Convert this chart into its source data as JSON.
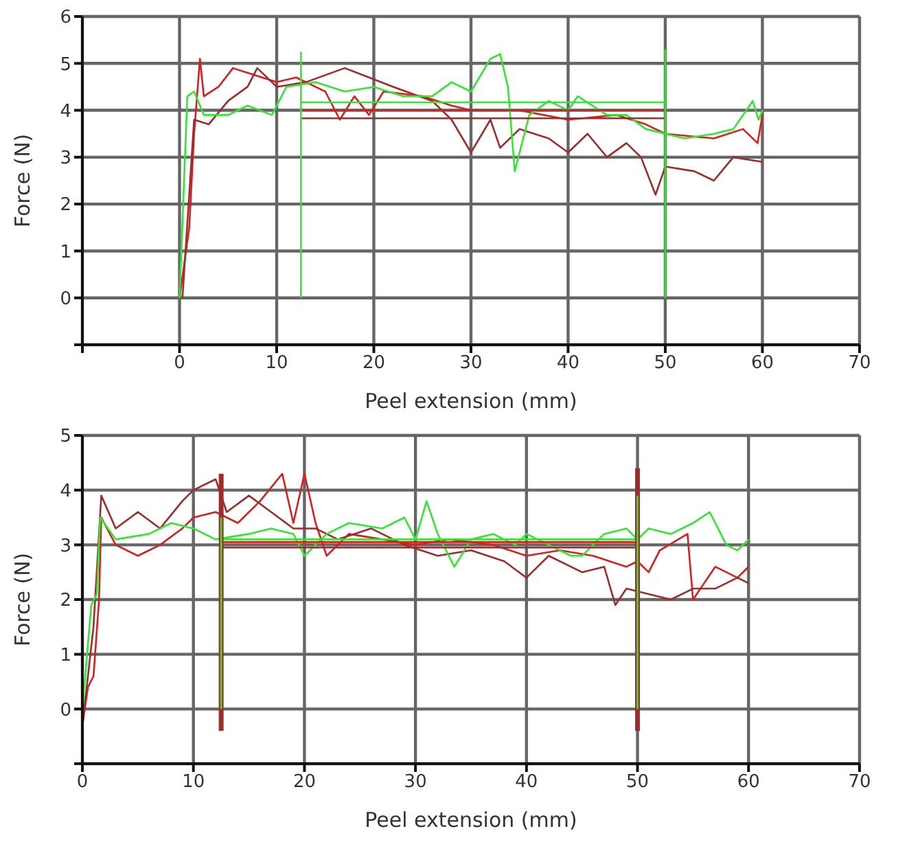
{
  "chart_data": [
    {
      "type": "line",
      "xlabel": "Peel extension (mm)",
      "ylabel": "Force (N)",
      "xlim": [
        -10,
        70
      ],
      "ylim": [
        -1,
        6
      ],
      "xticks": [
        {
          "value": -10,
          "label": null
        },
        0,
        10,
        20,
        30,
        40,
        50,
        60,
        70
      ],
      "yticks": [
        {
          "value": -1,
          "label": null
        },
        0,
        1,
        2,
        3,
        4,
        5,
        6
      ],
      "grid": true,
      "marker": "none",
      "line_style": "solid",
      "series": [
        {
          "color": "#d42020",
          "x": [
            0,
            1,
            1.5,
            2.1,
            2.5,
            4,
            5.5,
            7,
            10,
            12,
            14,
            15,
            16.5,
            18,
            19.5,
            21,
            25,
            28,
            30,
            35,
            40,
            45,
            48,
            50,
            55,
            58,
            59.5,
            60
          ],
          "values": [
            0,
            1.5,
            3.5,
            5.1,
            4.3,
            4.5,
            4.9,
            4.8,
            4.6,
            4.7,
            4.5,
            4.4,
            3.8,
            4.3,
            3.9,
            4.4,
            4.3,
            4.1,
            4.0,
            4.0,
            3.8,
            3.9,
            3.7,
            3.5,
            3.4,
            3.6,
            3.3,
            3.9
          ]
        },
        {
          "color": "#9b2d2d",
          "x": [
            0.3,
            1.5,
            3,
            5,
            7,
            8,
            10,
            13,
            17,
            19.5,
            22,
            26,
            28,
            30,
            32,
            33,
            35,
            38,
            40,
            42,
            44,
            46,
            47.5,
            49,
            50,
            53,
            55,
            57,
            60
          ],
          "values": [
            0,
            3.8,
            3.7,
            4.2,
            4.5,
            4.9,
            4.5,
            4.6,
            4.9,
            4.7,
            4.5,
            4.2,
            3.8,
            3.1,
            3.8,
            3.2,
            3.6,
            3.4,
            3.1,
            3.5,
            3.0,
            3.3,
            3.0,
            2.2,
            2.8,
            2.7,
            2.5,
            3.0,
            2.9
          ]
        },
        {
          "color": "#33e633",
          "x": [
            0,
            0.8,
            1.5,
            2.5,
            5,
            7,
            9.5,
            11,
            14,
            17,
            20,
            23,
            26,
            28,
            30,
            32,
            33,
            33.8,
            34.5,
            36,
            38,
            40,
            41,
            44,
            46,
            48,
            50,
            52,
            55,
            57,
            59,
            59.6,
            60
          ],
          "values": [
            0,
            4.3,
            4.4,
            3.9,
            3.9,
            4.1,
            3.9,
            4.5,
            4.6,
            4.4,
            4.5,
            4.3,
            4.3,
            4.6,
            4.4,
            5.1,
            5.2,
            4.5,
            2.7,
            3.9,
            4.2,
            4.0,
            4.3,
            3.9,
            3.9,
            3.6,
            3.5,
            3.4,
            3.5,
            3.6,
            4.2,
            3.8,
            4.0
          ]
        },
        {
          "color": "#33e633",
          "x": [
            12.5,
            50
          ],
          "values": [
            4.17,
            4.17
          ]
        },
        {
          "color": "#d42020",
          "x": [
            12.5,
            50
          ],
          "values": [
            4.0,
            4.0
          ]
        },
        {
          "color": "#9b2d2d",
          "x": [
            12.5,
            50
          ],
          "values": [
            3.83,
            3.83
          ]
        },
        {
          "color": "#33e633",
          "x": [
            12.5,
            12.5
          ],
          "values": [
            0,
            5.25
          ]
        },
        {
          "color": "#33e633",
          "x": [
            50,
            50
          ],
          "values": [
            0,
            5.3
          ]
        }
      ]
    },
    {
      "type": "line",
      "xlabel": "Peel extension (mm)",
      "ylabel": "Force (N)",
      "xlim": [
        0,
        70
      ],
      "ylim": [
        -1,
        5
      ],
      "xticks": [
        0,
        10,
        20,
        30,
        40,
        50,
        60,
        70
      ],
      "yticks": [
        {
          "value": -1,
          "label": null
        },
        0,
        1,
        2,
        3,
        4,
        5
      ],
      "grid": true,
      "marker": "none",
      "line_style": "solid",
      "series": [
        {
          "color": "#d42020",
          "x": [
            0,
            0.5,
            1,
            1.5,
            1.7,
            3,
            5,
            7,
            9,
            10,
            12,
            14,
            16,
            18,
            19,
            20,
            21,
            22,
            24,
            27,
            30,
            33,
            37,
            40,
            43,
            46,
            49,
            50,
            51,
            52,
            54.5,
            55,
            57,
            59,
            60
          ],
          "values": [
            -0.3,
            0.4,
            0.6,
            2.0,
            3.5,
            3.0,
            2.8,
            3.0,
            3.3,
            3.5,
            3.6,
            3.4,
            3.8,
            4.3,
            3.4,
            4.3,
            3.4,
            2.8,
            3.2,
            3.1,
            3.0,
            3.1,
            3.0,
            2.8,
            2.9,
            2.8,
            2.6,
            2.7,
            2.5,
            2.9,
            3.2,
            2.0,
            2.6,
            2.4,
            2.6
          ]
        },
        {
          "color": "#9b2d2d",
          "x": [
            0,
            1,
            1.7,
            3,
            5,
            7,
            9,
            10,
            12,
            13,
            15,
            17,
            19,
            21,
            23,
            26,
            29,
            32,
            35,
            38,
            40,
            42,
            45,
            47,
            48,
            49,
            51,
            53,
            55,
            57,
            59,
            60
          ],
          "values": [
            -0.3,
            1.5,
            3.9,
            3.3,
            3.6,
            3.3,
            3.8,
            4.0,
            4.2,
            3.6,
            3.9,
            3.6,
            3.3,
            3.3,
            3.1,
            3.3,
            3.0,
            2.8,
            2.9,
            2.7,
            2.4,
            2.8,
            2.5,
            2.6,
            1.9,
            2.2,
            2.1,
            2.0,
            2.2,
            2.2,
            2.4,
            2.3
          ]
        },
        {
          "color": "#33e633",
          "x": [
            0,
            0.8,
            1.3,
            1.6,
            3,
            6,
            8,
            10,
            12,
            15,
            17,
            19,
            20,
            22,
            24,
            27,
            29,
            30,
            31,
            32,
            33.5,
            35,
            37,
            39,
            40,
            42,
            44,
            45,
            47,
            49,
            50,
            51,
            53,
            55,
            56.5,
            58,
            59,
            60
          ],
          "values": [
            0,
            1.9,
            2.1,
            3.5,
            3.1,
            3.2,
            3.4,
            3.3,
            3.1,
            3.2,
            3.3,
            3.2,
            2.8,
            3.2,
            3.4,
            3.3,
            3.5,
            3.1,
            3.8,
            3.2,
            2.6,
            3.1,
            3.2,
            3.0,
            3.2,
            3.0,
            2.8,
            2.8,
            3.2,
            3.3,
            3.1,
            3.3,
            3.2,
            3.4,
            3.6,
            3.0,
            2.9,
            3.1
          ]
        },
        {
          "color": "#33e633",
          "x": [
            12.5,
            50
          ],
          "values": [
            3.1,
            3.1
          ]
        },
        {
          "color": "#d42020",
          "x": [
            12.5,
            50
          ],
          "values": [
            3.05,
            3.05
          ]
        },
        {
          "color": "#9b2d2d",
          "x": [
            12.5,
            50
          ],
          "values": [
            2.95,
            2.95
          ]
        },
        {
          "color": "#9b2d2d",
          "x": [
            12.5,
            12.5
          ],
          "values": [
            -0.4,
            4.3
          ]
        },
        {
          "color": "#33e633",
          "x": [
            12.5,
            12.5
          ],
          "values": [
            0,
            3.5
          ]
        },
        {
          "color": "#9b2d2d",
          "x": [
            50,
            50
          ],
          "values": [
            -0.4,
            4.4
          ]
        },
        {
          "color": "#33e633",
          "x": [
            50,
            50
          ],
          "values": [
            0,
            3.9
          ]
        }
      ]
    }
  ]
}
